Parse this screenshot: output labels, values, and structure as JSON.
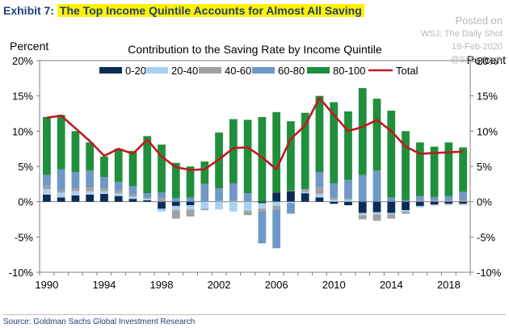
{
  "header": {
    "exhibit_label": "Exhibit 7:",
    "exhibit_title": "The Top Income Quintile Accounts for Almost All Saving"
  },
  "watermark": {
    "line1": "Posted on",
    "line2": "WSJ: The Daily Shot",
    "line3": "19-Feb-2020",
    "line4": "@SoberLook"
  },
  "source": "Source: Goldman Sachs Global Investment Research",
  "chart_data": {
    "type": "bar",
    "title": "Contribution to the Saving Rate by Income Quintile",
    "ylabel_left": "Percent",
    "ylabel_right": "Percent",
    "ylim": [
      -10,
      20
    ],
    "yticks": [
      "20%",
      "15%",
      "10%",
      "5%",
      "0%",
      "-5%",
      "-10%"
    ],
    "x_tick_labels": [
      "1990",
      "1994",
      "1998",
      "2002",
      "2006",
      "2010",
      "2014",
      "2018"
    ],
    "categories": [
      "1990",
      "1991",
      "1992",
      "1993",
      "1994",
      "1995",
      "1996",
      "1997",
      "1998",
      "1999",
      "2000",
      "2001",
      "2002",
      "2003",
      "2004",
      "2005",
      "2006",
      "2007",
      "2008",
      "2009",
      "2010",
      "2011",
      "2012",
      "2013",
      "2014",
      "2015",
      "2016",
      "2017",
      "2018",
      "2019"
    ],
    "stacked": true,
    "legend_position": "top",
    "series": [
      {
        "name": "0-20",
        "color": "#0d2c54",
        "values": [
          1.0,
          0.6,
          0.9,
          1.0,
          1.1,
          0.8,
          0.4,
          0.2,
          -1.0,
          -0.6,
          -0.5,
          0.0,
          0.0,
          0.0,
          0.0,
          -0.2,
          1.3,
          1.5,
          1.2,
          0.6,
          -0.3,
          -0.5,
          -1.6,
          -1.5,
          -1.6,
          -1.2,
          -0.6,
          -0.4,
          -0.3,
          -0.3
        ]
      },
      {
        "name": "20-40",
        "color": "#a9d1f0",
        "values": [
          0.8,
          0.7,
          0.6,
          0.5,
          0.4,
          0.4,
          0.3,
          0.2,
          -0.4,
          -0.6,
          -0.6,
          -1.0,
          -1.1,
          -1.4,
          -1.3,
          -0.8,
          -0.6,
          -0.2,
          0.2,
          0.5,
          0.3,
          0.3,
          -0.3,
          -0.3,
          -0.2,
          -0.2,
          -0.2,
          -0.2,
          -0.2,
          -0.2
        ]
      },
      {
        "name": "40-60",
        "color": "#a0a0a0",
        "values": [
          0.5,
          0.3,
          0.4,
          0.5,
          0.4,
          0.4,
          0.3,
          0.2,
          0.5,
          -1.2,
          -1.0,
          -0.2,
          0.1,
          0.2,
          -0.6,
          -0.4,
          -0.5,
          0.1,
          0.3,
          0.9,
          0.3,
          0.2,
          -0.6,
          -0.9,
          -0.6,
          -0.3,
          0.2,
          0.2,
          0.2,
          0.3
        ]
      },
      {
        "name": "60-80",
        "color": "#7098c6",
        "values": [
          1.5,
          3.0,
          2.3,
          2.4,
          1.6,
          1.2,
          1.2,
          0.6,
          0.8,
          0.5,
          0.6,
          2.5,
          1.8,
          2.4,
          1.2,
          -4.5,
          -5.5,
          -1.5,
          0.1,
          2.2,
          2.0,
          2.6,
          3.8,
          4.4,
          0.6,
          0.2,
          0.6,
          0.5,
          0.6,
          1.1
        ]
      },
      {
        "name": "80-100",
        "color": "#1f8f3c",
        "values": [
          8.2,
          7.7,
          5.8,
          4.0,
          2.9,
          4.7,
          5.0,
          8.1,
          6.8,
          5.0,
          4.4,
          3.2,
          7.9,
          9.1,
          10.4,
          12.0,
          11.4,
          9.8,
          10.8,
          10.8,
          11.5,
          9.7,
          12.3,
          10.2,
          12.3,
          9.8,
          7.6,
          7.1,
          7.6,
          6.3
        ]
      }
    ],
    "line_series": {
      "name": "Total",
      "color": "#c0181f",
      "values": [
        11.9,
        12.2,
        10.4,
        8.6,
        6.5,
        7.5,
        6.8,
        8.8,
        6.4,
        4.9,
        4.5,
        4.6,
        6.0,
        7.6,
        7.7,
        6.3,
        4.6,
        8.9,
        10.8,
        14.7,
        12.3,
        10.0,
        10.6,
        11.6,
        10.0,
        7.8,
        6.8,
        6.9,
        7.0,
        7.1
      ]
    }
  }
}
